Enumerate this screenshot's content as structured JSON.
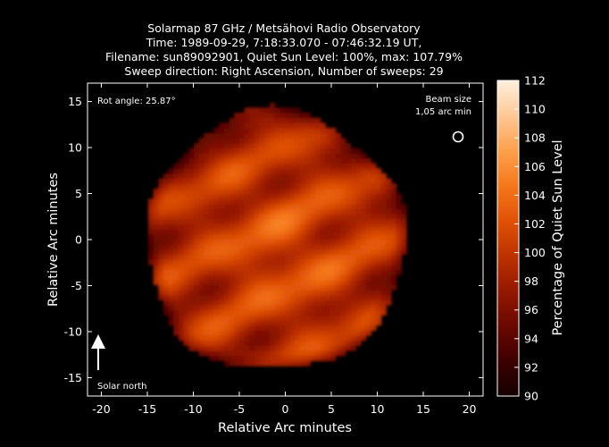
{
  "chart_data": {
    "type": "heatmap",
    "title_lines": [
      "Solarmap 87 GHz / Metsähovi Radio Observatory",
      "Time: 1989-09-29,  7:18:33.070 - 07:46:32.19 UT,",
      "Filename: sun89092901, Quiet Sun Level: 100%, max: 107.79%",
      "Sweep direction: Right Ascension, Number of sweeps: 29"
    ],
    "xlabel": "Relative Arc minutes",
    "ylabel": "Relative Arc minutes",
    "xlim": [
      -21.5,
      21.5
    ],
    "ylim": [
      -17,
      17
    ],
    "x_ticks": [
      -20,
      -15,
      -10,
      -5,
      0,
      5,
      10,
      15,
      20
    ],
    "y_ticks": [
      -15,
      -10,
      -5,
      0,
      5,
      10,
      15
    ],
    "colorbar": {
      "label": "Percentage of Quiet Sun Level",
      "range": [
        90,
        112
      ],
      "ticks": [
        90,
        92,
        94,
        96,
        98,
        100,
        102,
        104,
        106,
        108,
        110,
        112
      ],
      "colors": [
        "#150000",
        "#3d0000",
        "#6a0800",
        "#951800",
        "#bd3200",
        "#e05206",
        "#f5781c",
        "#fda04c",
        "#fec896",
        "#fff0dd"
      ]
    },
    "annotations": {
      "rot_angle": "Rot angle: 25.87°",
      "beam_size_line1": "Beam size",
      "beam_size_line2": "1,05 arc min",
      "solar_north": "Solar north"
    },
    "disk": {
      "center": [
        -1.1,
        -0.2
      ],
      "radius": 14.1,
      "background_level": 98.5,
      "max_level": 107.79,
      "sweep_stripes": 4,
      "rotation_deg": 25.87
    }
  }
}
